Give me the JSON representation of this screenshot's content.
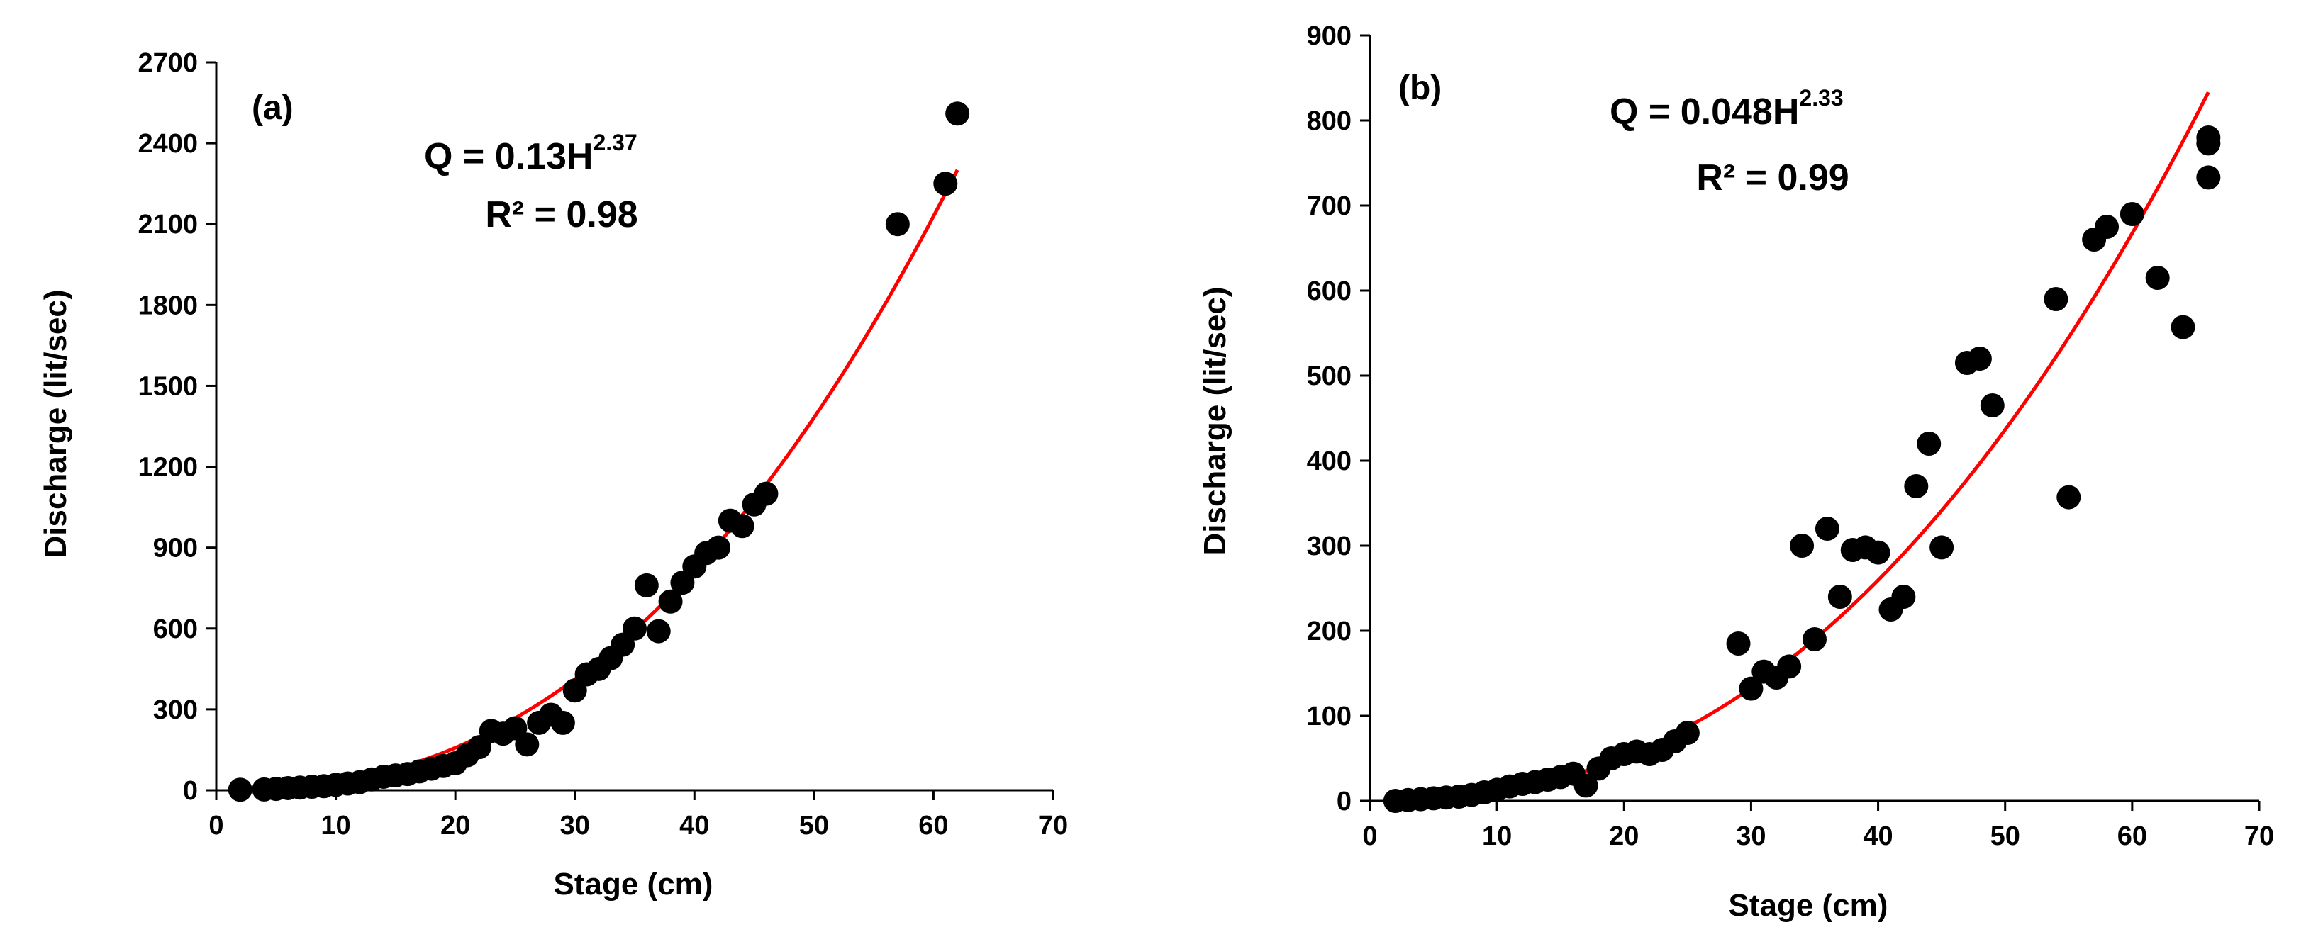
{
  "colors": {
    "points": "#000000",
    "fit": "#ff0000",
    "axis": "#000000"
  },
  "chart_data": [
    {
      "type": "scatter",
      "panel": "(a)",
      "xlabel": "Stage (cm)",
      "ylabel": "Discharge (lit/sec)",
      "xlim": [
        0,
        70
      ],
      "ylim": [
        0,
        2700
      ],
      "xticks": [
        0,
        10,
        20,
        30,
        40,
        50,
        60,
        70
      ],
      "yticks": [
        0,
        300,
        600,
        900,
        1200,
        1500,
        1800,
        2100,
        2400,
        2700
      ],
      "grid": false,
      "equation": {
        "prefix": "Q = 0.13H",
        "exponent": "2.37",
        "r2": "R² = 0.98"
      },
      "fit": {
        "a": 0.13,
        "b": 2.37,
        "x_range": [
          2,
          62
        ]
      },
      "points": [
        [
          2,
          2
        ],
        [
          4,
          3
        ],
        [
          5,
          5
        ],
        [
          6,
          8
        ],
        [
          7,
          10
        ],
        [
          8,
          13
        ],
        [
          9,
          15
        ],
        [
          10,
          20
        ],
        [
          11,
          25
        ],
        [
          12,
          30
        ],
        [
          13,
          40
        ],
        [
          14,
          50
        ],
        [
          15,
          55
        ],
        [
          16,
          60
        ],
        [
          17,
          70
        ],
        [
          18,
          80
        ],
        [
          19,
          90
        ],
        [
          20,
          100
        ],
        [
          21,
          130
        ],
        [
          22,
          160
        ],
        [
          23,
          220
        ],
        [
          24,
          210
        ],
        [
          25,
          230
        ],
        [
          26,
          170
        ],
        [
          27,
          250
        ],
        [
          28,
          280
        ],
        [
          29,
          250
        ],
        [
          30,
          370
        ],
        [
          31,
          430
        ],
        [
          32,
          450
        ],
        [
          33,
          490
        ],
        [
          34,
          540
        ],
        [
          35,
          600
        ],
        [
          36,
          760
        ],
        [
          37,
          590
        ],
        [
          38,
          700
        ],
        [
          39,
          770
        ],
        [
          40,
          830
        ],
        [
          41,
          880
        ],
        [
          42,
          900
        ],
        [
          43,
          1000
        ],
        [
          44,
          980
        ],
        [
          45,
          1060
        ],
        [
          46,
          1100
        ],
        [
          57,
          2100
        ],
        [
          61,
          2250
        ],
        [
          62,
          2510
        ]
      ]
    },
    {
      "type": "scatter",
      "panel": "(b)",
      "xlabel": "Stage (cm)",
      "ylabel": "Discharge (lit/sec)",
      "xlim": [
        0,
        70
      ],
      "ylim": [
        0,
        900
      ],
      "xticks": [
        0,
        10,
        20,
        30,
        40,
        50,
        60,
        70
      ],
      "yticks": [
        0,
        100,
        200,
        300,
        400,
        500,
        600,
        700,
        800,
        900
      ],
      "grid": false,
      "equation": {
        "prefix": "Q = 0.048H",
        "exponent": "2.33",
        "r2": "R² = 0.99"
      },
      "fit": {
        "a": 0.048,
        "b": 2.33,
        "x_range": [
          2,
          66
        ]
      },
      "points": [
        [
          2,
          0
        ],
        [
          3,
          1
        ],
        [
          4,
          2
        ],
        [
          5,
          3
        ],
        [
          6,
          4
        ],
        [
          7,
          5
        ],
        [
          8,
          7
        ],
        [
          9,
          10
        ],
        [
          10,
          13
        ],
        [
          11,
          17
        ],
        [
          12,
          20
        ],
        [
          13,
          22
        ],
        [
          14,
          25
        ],
        [
          15,
          28
        ],
        [
          16,
          32
        ],
        [
          17,
          18
        ],
        [
          18,
          38
        ],
        [
          19,
          50
        ],
        [
          20,
          55
        ],
        [
          21,
          58
        ],
        [
          22,
          55
        ],
        [
          23,
          60
        ],
        [
          24,
          70
        ],
        [
          25,
          80
        ],
        [
          29,
          185
        ],
        [
          30,
          132
        ],
        [
          31,
          152
        ],
        [
          32,
          145
        ],
        [
          33,
          158
        ],
        [
          34,
          300
        ],
        [
          35,
          190
        ],
        [
          36,
          320
        ],
        [
          37,
          240
        ],
        [
          38,
          295
        ],
        [
          39,
          298
        ],
        [
          40,
          292
        ],
        [
          41,
          225
        ],
        [
          42,
          240
        ],
        [
          43,
          370
        ],
        [
          44,
          420
        ],
        [
          45,
          298
        ],
        [
          47,
          515
        ],
        [
          48,
          520
        ],
        [
          49,
          465
        ],
        [
          54,
          590
        ],
        [
          55,
          357
        ],
        [
          57,
          660
        ],
        [
          58,
          675
        ],
        [
          60,
          690
        ],
        [
          62,
          615
        ],
        [
          64,
          557
        ],
        [
          66,
          780
        ],
        [
          66,
          773
        ],
        [
          66,
          733
        ]
      ]
    }
  ]
}
